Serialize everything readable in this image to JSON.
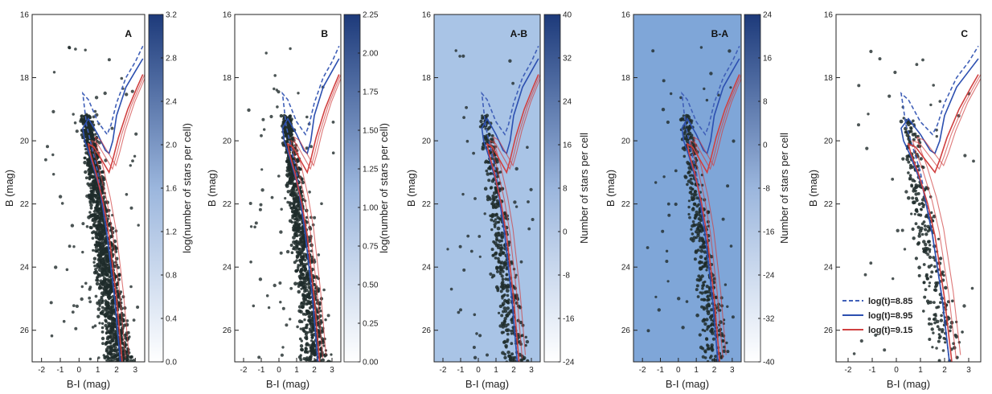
{
  "chart_data": [
    {
      "type": "heatmap",
      "panel_label": "A",
      "xlabel": "B-I (mag)",
      "ylabel": "B (mag)",
      "xlim": [
        -2.5,
        3.5
      ],
      "ylim": [
        27,
        16
      ],
      "xticks": [
        "-2",
        "-1",
        "0",
        "1",
        "2",
        "3"
      ],
      "yticks": [
        "16",
        "18",
        "20",
        "22",
        "24",
        "26"
      ],
      "background": "#ffffff",
      "colorbar": {
        "label": "log(number of stars per cell)",
        "ticks": [
          "0.0",
          "0.4",
          "0.8",
          "1.2",
          "1.6",
          "2.0",
          "2.4",
          "2.8",
          "3.2"
        ],
        "cmap": [
          "#ffffff",
          "#1d3a7a"
        ]
      },
      "star_density": 1.0
    },
    {
      "type": "heatmap",
      "panel_label": "B",
      "xlabel": "B-I (mag)",
      "ylabel": "B (mag)",
      "xlim": [
        -2.5,
        3.5
      ],
      "ylim": [
        27,
        16
      ],
      "xticks": [
        "-2",
        "-1",
        "0",
        "1",
        "2",
        "3"
      ],
      "yticks": [
        "16",
        "18",
        "20",
        "22",
        "24",
        "26"
      ],
      "background": "#ffffff",
      "colorbar": {
        "label": "log(number of stars per cell)",
        "ticks": [
          "0.00",
          "0.25",
          "0.50",
          "0.75",
          "1.00",
          "1.25",
          "1.50",
          "1.75",
          "2.00",
          "2.25"
        ],
        "cmap": [
          "#ffffff",
          "#1d3a7a"
        ]
      },
      "star_density": 0.7
    },
    {
      "type": "heatmap",
      "panel_label": "A-B",
      "xlabel": "B-I (mag)",
      "ylabel": "B (mag)",
      "xlim": [
        -2.5,
        3.5
      ],
      "ylim": [
        27,
        16
      ],
      "xticks": [
        "-2",
        "-1",
        "0",
        "1",
        "2",
        "3"
      ],
      "yticks": [
        "16",
        "18",
        "20",
        "22",
        "24",
        "26"
      ],
      "background": "#a9c4e6",
      "colorbar": {
        "label": "Number of stars per cell",
        "ticks": [
          "-24",
          "-16",
          "-8",
          "0",
          "8",
          "16",
          "24",
          "32",
          "40"
        ],
        "cmap": [
          "#ffffff",
          "#1d3a7a"
        ]
      },
      "star_density": 0.3
    },
    {
      "type": "heatmap",
      "panel_label": "B-A",
      "xlabel": "B-I (mag)",
      "ylabel": "B (mag)",
      "xlim": [
        -2.5,
        3.5
      ],
      "ylim": [
        27,
        16
      ],
      "xticks": [
        "-2",
        "-1",
        "0",
        "1",
        "2",
        "3"
      ],
      "yticks": [
        "16",
        "18",
        "20",
        "22",
        "24",
        "26"
      ],
      "background": "#7fa6d8",
      "colorbar": {
        "label": "Number of stars per cell",
        "ticks": [
          "-40",
          "-32",
          "-24",
          "-16",
          "-8",
          "0",
          "8",
          "16",
          "24"
        ],
        "cmap": [
          "#ffffff",
          "#1d3a7a"
        ]
      },
      "star_density": 0.3
    },
    {
      "type": "scatter",
      "panel_label": "C",
      "xlabel": "B-I (mag)",
      "ylabel": "B (mag)",
      "xlim": [
        -2.5,
        3.5
      ],
      "ylim": [
        27,
        16
      ],
      "xticks": [
        "-2",
        "-1",
        "0",
        "1",
        "2",
        "3"
      ],
      "yticks": [
        "16",
        "18",
        "20",
        "22",
        "24",
        "26"
      ],
      "background": "#ffffff",
      "star_density": 0.2,
      "legend": {
        "placement": "bottom-left",
        "entries": [
          {
            "label": "log(t)=8.85",
            "color": "#4060b8",
            "style": "dashed"
          },
          {
            "label": "log(t)=8.95",
            "color": "#2c4fb0",
            "style": "solid"
          },
          {
            "label": "log(t)=9.15",
            "color": "#d04040",
            "style": "solid"
          }
        ]
      }
    }
  ],
  "isochrones": [
    {
      "name": "log(t)=8.85",
      "color": "#4060b8",
      "style": "dashed",
      "points": [
        [
          2.2,
          27
        ],
        [
          1.9,
          25
        ],
        [
          1.5,
          23
        ],
        [
          1.0,
          21
        ],
        [
          0.6,
          20
        ],
        [
          0.4,
          19.5
        ],
        [
          0.3,
          19.0
        ],
        [
          0.2,
          18.5
        ],
        [
          0.5,
          18.7
        ],
        [
          1.0,
          19.4
        ],
        [
          1.5,
          19.8
        ],
        [
          1.7,
          19.5
        ],
        [
          2.0,
          18.8
        ],
        [
          2.5,
          18.0
        ],
        [
          3.0,
          17.5
        ],
        [
          3.4,
          17.0
        ]
      ]
    },
    {
      "name": "log(t)=8.95",
      "color": "#2c4fb0",
      "style": "solid",
      "points": [
        [
          2.2,
          27
        ],
        [
          1.9,
          25
        ],
        [
          1.5,
          23
        ],
        [
          1.1,
          21.5
        ],
        [
          0.6,
          20.5
        ],
        [
          0.3,
          20.0
        ],
        [
          0.2,
          19.6
        ],
        [
          0.5,
          19.3
        ],
        [
          1.0,
          19.8
        ],
        [
          1.4,
          20.3
        ],
        [
          1.6,
          20.4
        ],
        [
          1.8,
          20.0
        ],
        [
          2.0,
          19.2
        ],
        [
          2.5,
          18.3
        ],
        [
          3.0,
          17.8
        ],
        [
          3.4,
          17.4
        ]
      ]
    },
    {
      "name": "log(t)=9.15",
      "color": "#d04040",
      "style": "solid",
      "points": [
        [
          2.3,
          27
        ],
        [
          2.0,
          25
        ],
        [
          1.6,
          23
        ],
        [
          1.3,
          22
        ],
        [
          0.9,
          21.0
        ],
        [
          0.6,
          20.4
        ],
        [
          0.5,
          20.1
        ],
        [
          0.8,
          20.2
        ],
        [
          1.3,
          20.7
        ],
        [
          1.6,
          21.0
        ],
        [
          1.8,
          20.6
        ],
        [
          2.1,
          19.9
        ],
        [
          2.6,
          19.0
        ],
        [
          3.1,
          18.3
        ],
        [
          3.4,
          17.9
        ]
      ]
    }
  ]
}
